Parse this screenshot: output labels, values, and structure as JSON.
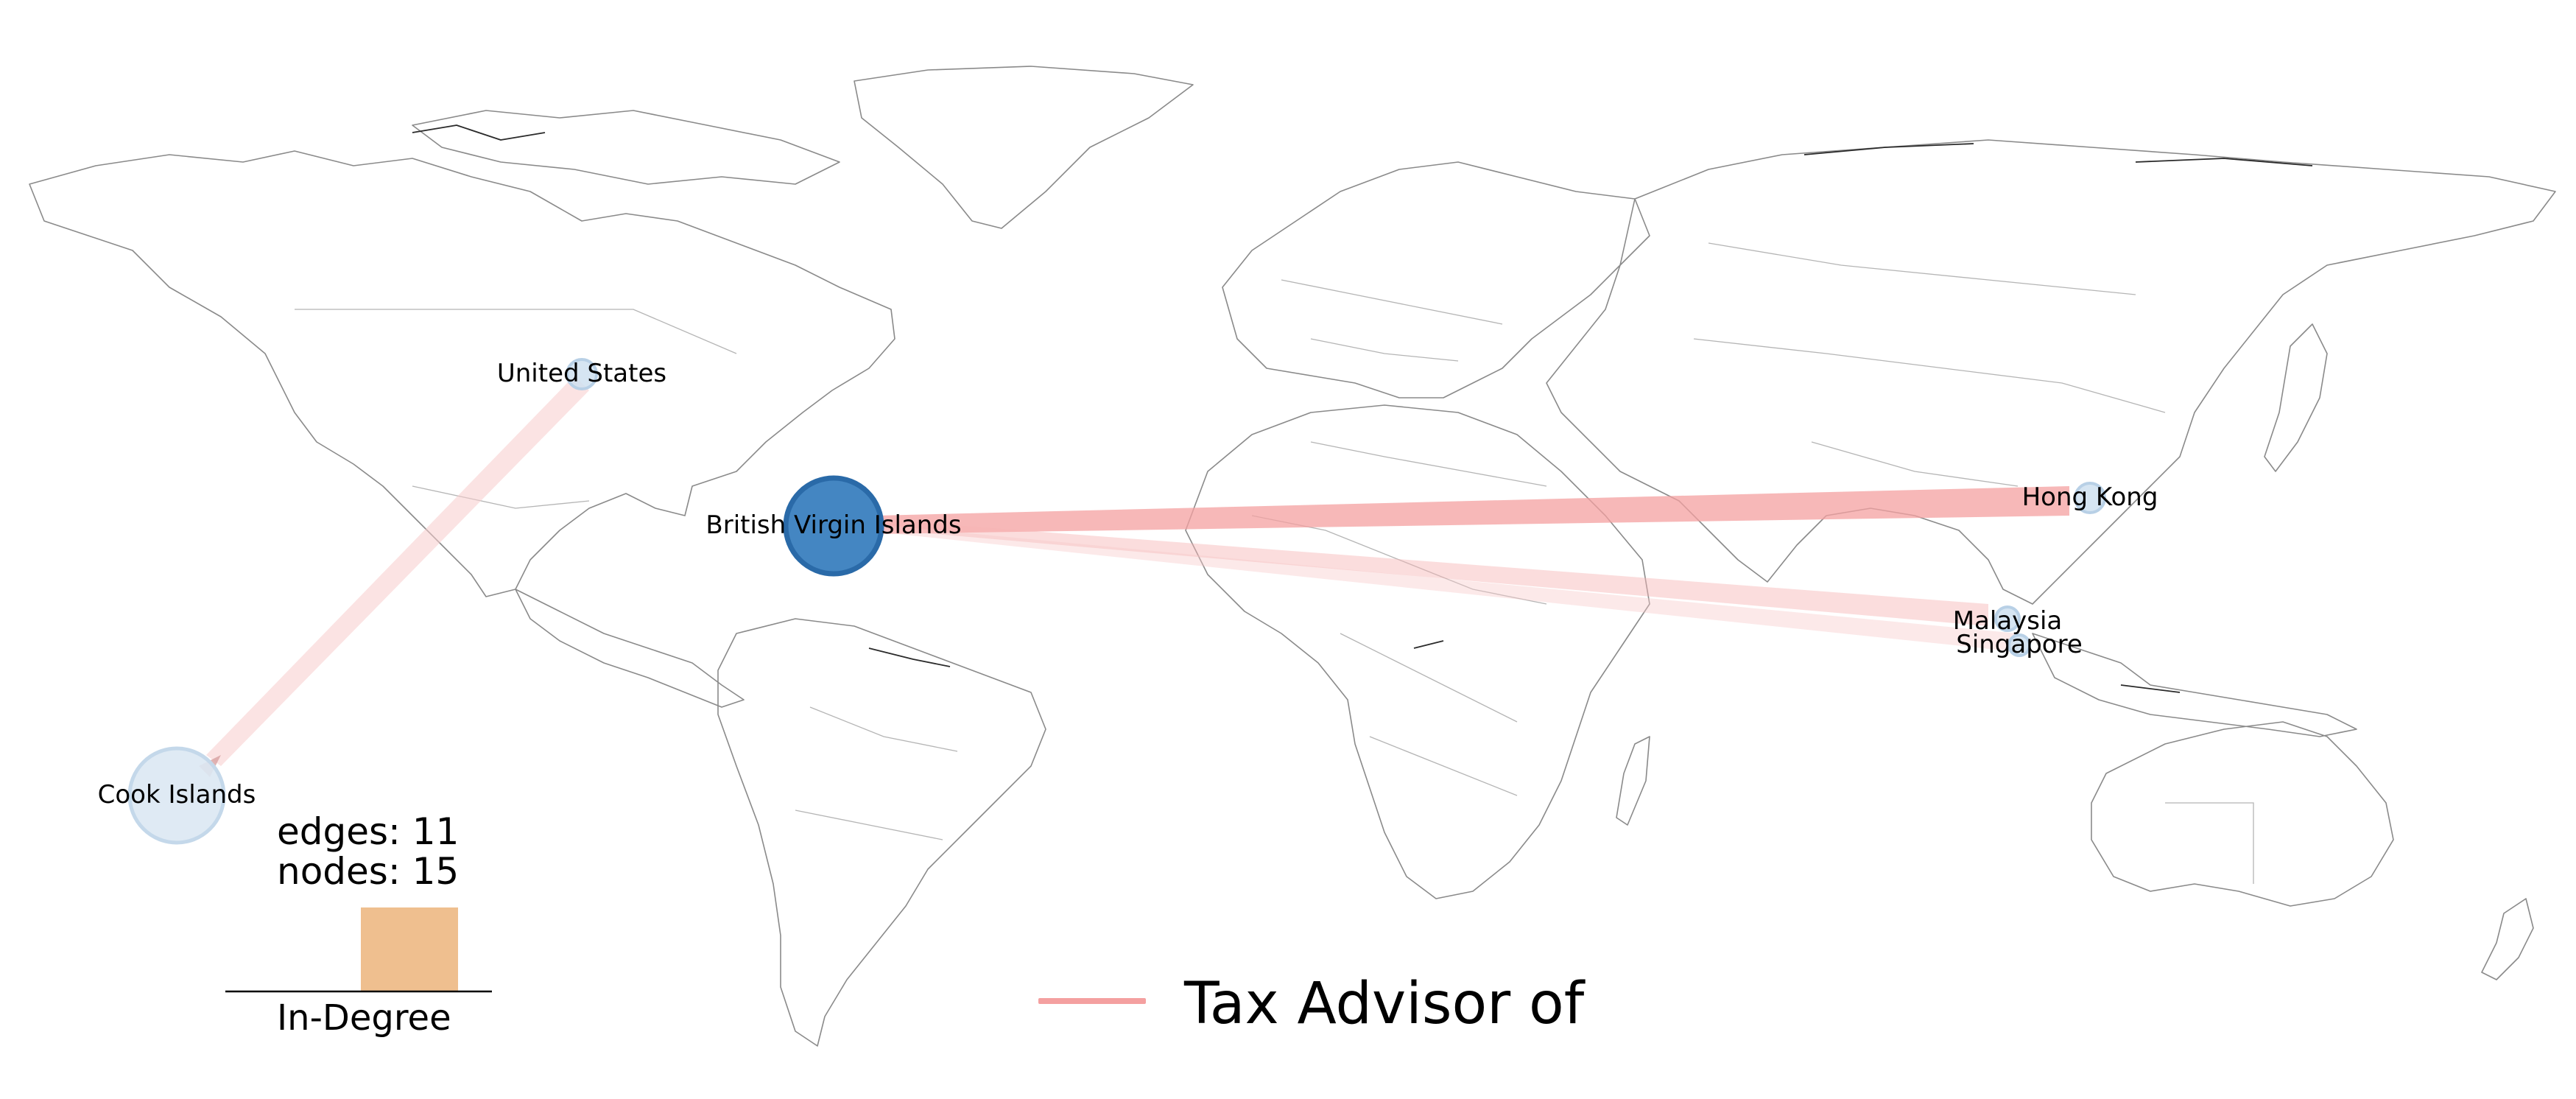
{
  "graph": {
    "edges_text": "edges: 11",
    "nodes_text": "nodes: 15",
    "histogram_label": "In-Degree"
  },
  "legend": {
    "label": "Tax Advisor of",
    "color": "#f4a0a0"
  },
  "nodes": [
    {
      "id": "bvi",
      "label": "British Virgin Islands",
      "size": "large",
      "color": "#3a7fbf"
    },
    {
      "id": "us",
      "label": "United States",
      "size": "small",
      "color": "#cfe0f0"
    },
    {
      "id": "hk",
      "label": "Hong Kong",
      "size": "small",
      "color": "#cfe0f0"
    },
    {
      "id": "my",
      "label": "Malaysia",
      "size": "small",
      "color": "#cfe0f0"
    },
    {
      "id": "sg",
      "label": "Singapore",
      "size": "small",
      "color": "#cfe0f0"
    },
    {
      "id": "ck",
      "label": "Cook Islands",
      "size": "medium",
      "color": "#cfe0f0"
    }
  ],
  "histogram": {
    "bar_color": "#efbf8f"
  }
}
